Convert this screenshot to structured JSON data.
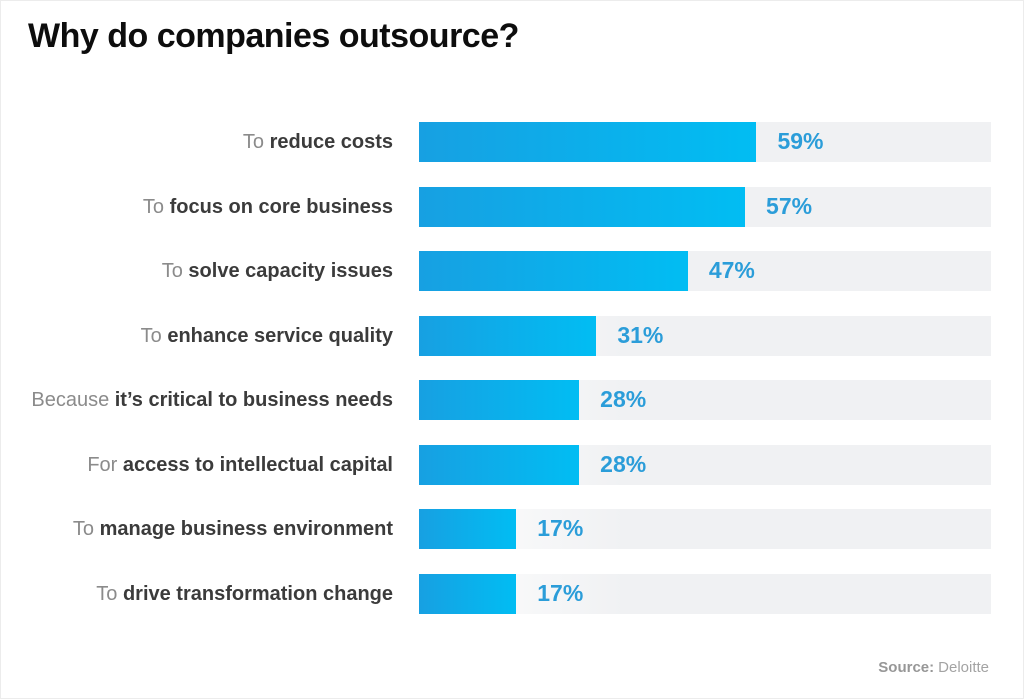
{
  "title": "Why do companies outsource?",
  "source": {
    "label": "Source:",
    "value": "Deloitte"
  },
  "colors": {
    "bar_gradient_start": "#17a0e2",
    "bar_gradient_end": "#01bdf3",
    "track_background": "#f0f1f3",
    "value_text": "#2b9dd9",
    "label_prefix": "#8b8b8b",
    "label_main": "#3b3b3b",
    "title_text": "#0d0d0d"
  },
  "rows": [
    {
      "prefix": "To",
      "main": "reduce costs",
      "value": 59,
      "value_label": "59%"
    },
    {
      "prefix": "To",
      "main": "focus on core business",
      "value": 57,
      "value_label": "57%"
    },
    {
      "prefix": "To",
      "main": "solve capacity issues",
      "value": 47,
      "value_label": "47%"
    },
    {
      "prefix": "To",
      "main": "enhance service quality",
      "value": 31,
      "value_label": "31%"
    },
    {
      "prefix": "Because",
      "main": "it’s critical to business needs",
      "value": 28,
      "value_label": "28%"
    },
    {
      "prefix": "For",
      "main": "access to intellectual capital",
      "value": 28,
      "value_label": "28%"
    },
    {
      "prefix": "To",
      "main": "manage business environment",
      "value": 17,
      "value_label": "17%"
    },
    {
      "prefix": "To",
      "main": "drive transformation change",
      "value": 17,
      "value_label": "17%"
    }
  ],
  "chart_data": {
    "type": "bar",
    "orientation": "horizontal",
    "title": "Why do companies outsource?",
    "categories": [
      "To reduce costs",
      "To focus on core business",
      "To solve capacity issues",
      "To enhance service quality",
      "Because it’s critical to business needs",
      "For access to intellectual capital",
      "To manage business environment",
      "To drive transformation change"
    ],
    "values": [
      59,
      57,
      47,
      31,
      28,
      28,
      17,
      17
    ],
    "value_labels": [
      "59%",
      "57%",
      "47%",
      "31%",
      "28%",
      "28%",
      "17%",
      "17%"
    ],
    "xlabel": "",
    "ylabel": "",
    "xlim": [
      0,
      100
    ],
    "grid": false,
    "legend": false,
    "source": "Source: Deloitte"
  }
}
